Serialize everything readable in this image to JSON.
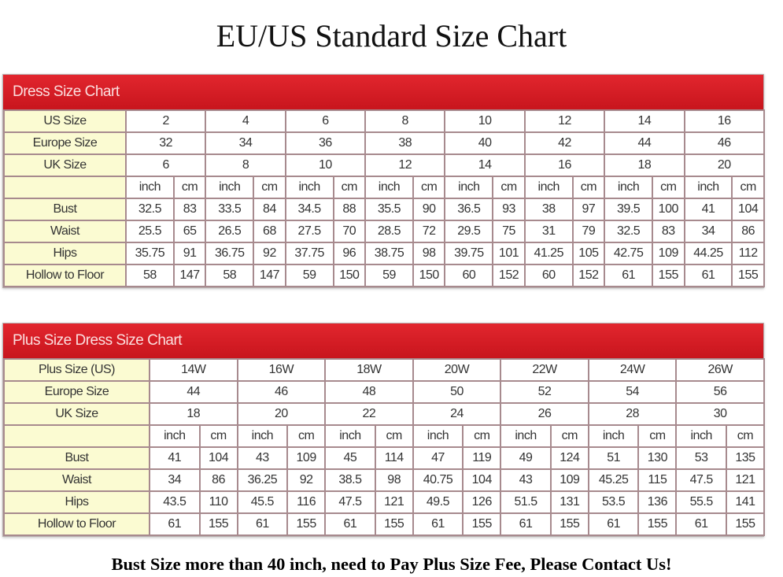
{
  "title": "EU/US Standard Size Chart",
  "dress_chart": {
    "heading": "Dress Size Chart",
    "size_rows": [
      {
        "label": "US Size",
        "values": [
          "2",
          "4",
          "6",
          "8",
          "10",
          "12",
          "14",
          "16"
        ]
      },
      {
        "label": "Europe Size",
        "values": [
          "32",
          "34",
          "36",
          "38",
          "40",
          "42",
          "44",
          "46"
        ]
      },
      {
        "label": "UK Size",
        "values": [
          "6",
          "8",
          "10",
          "12",
          "14",
          "16",
          "18",
          "20"
        ]
      }
    ],
    "unit_inch": "inch",
    "unit_cm": "cm",
    "measure_rows": [
      {
        "label": "Bust",
        "values": [
          "32.5",
          "83",
          "33.5",
          "84",
          "34.5",
          "88",
          "35.5",
          "90",
          "36.5",
          "93",
          "38",
          "97",
          "39.5",
          "100",
          "41",
          "104"
        ]
      },
      {
        "label": "Waist",
        "values": [
          "25.5",
          "65",
          "26.5",
          "68",
          "27.5",
          "70",
          "28.5",
          "72",
          "29.5",
          "75",
          "31",
          "79",
          "32.5",
          "83",
          "34",
          "86"
        ]
      },
      {
        "label": "Hips",
        "values": [
          "35.75",
          "91",
          "36.75",
          "92",
          "37.75",
          "96",
          "38.75",
          "98",
          "39.75",
          "101",
          "41.25",
          "105",
          "42.75",
          "109",
          "44.25",
          "112"
        ]
      },
      {
        "label": "Hollow to Floor",
        "values": [
          "58",
          "147",
          "58",
          "147",
          "59",
          "150",
          "59",
          "150",
          "60",
          "152",
          "60",
          "152",
          "61",
          "155",
          "61",
          "155"
        ]
      }
    ]
  },
  "plus_chart": {
    "heading": "Plus Size Dress Size Chart",
    "size_rows": [
      {
        "label": "Plus Size (US)",
        "values": [
          "14W",
          "16W",
          "18W",
          "20W",
          "22W",
          "24W",
          "26W"
        ]
      },
      {
        "label": "Europe Size",
        "values": [
          "44",
          "46",
          "48",
          "50",
          "52",
          "54",
          "56"
        ]
      },
      {
        "label": "UK Size",
        "values": [
          "18",
          "20",
          "22",
          "24",
          "26",
          "28",
          "30"
        ]
      }
    ],
    "unit_inch": "inch",
    "unit_cm": "cm",
    "measure_rows": [
      {
        "label": "Bust",
        "values": [
          "41",
          "104",
          "43",
          "109",
          "45",
          "114",
          "47",
          "119",
          "49",
          "124",
          "51",
          "130",
          "53",
          "135"
        ]
      },
      {
        "label": "Waist",
        "values": [
          "34",
          "86",
          "36.25",
          "92",
          "38.5",
          "98",
          "40.75",
          "104",
          "43",
          "109",
          "45.25",
          "115",
          "47.5",
          "121"
        ]
      },
      {
        "label": "Hips",
        "values": [
          "43.5",
          "110",
          "45.5",
          "116",
          "47.5",
          "121",
          "49.5",
          "126",
          "51.5",
          "131",
          "53.5",
          "136",
          "55.5",
          "141"
        ]
      },
      {
        "label": "Hollow to Floor",
        "values": [
          "61",
          "155",
          "61",
          "155",
          "61",
          "155",
          "61",
          "155",
          "61",
          "155",
          "61",
          "155",
          "61",
          "155"
        ]
      }
    ]
  },
  "footer": "Bust Size more than 40 inch, need to Pay Plus Size Fee, Please Contact Us!",
  "colors": {
    "header_red": "#d41c24",
    "label_yellow": "#fbfbd2",
    "grid": "#a78a8e"
  }
}
